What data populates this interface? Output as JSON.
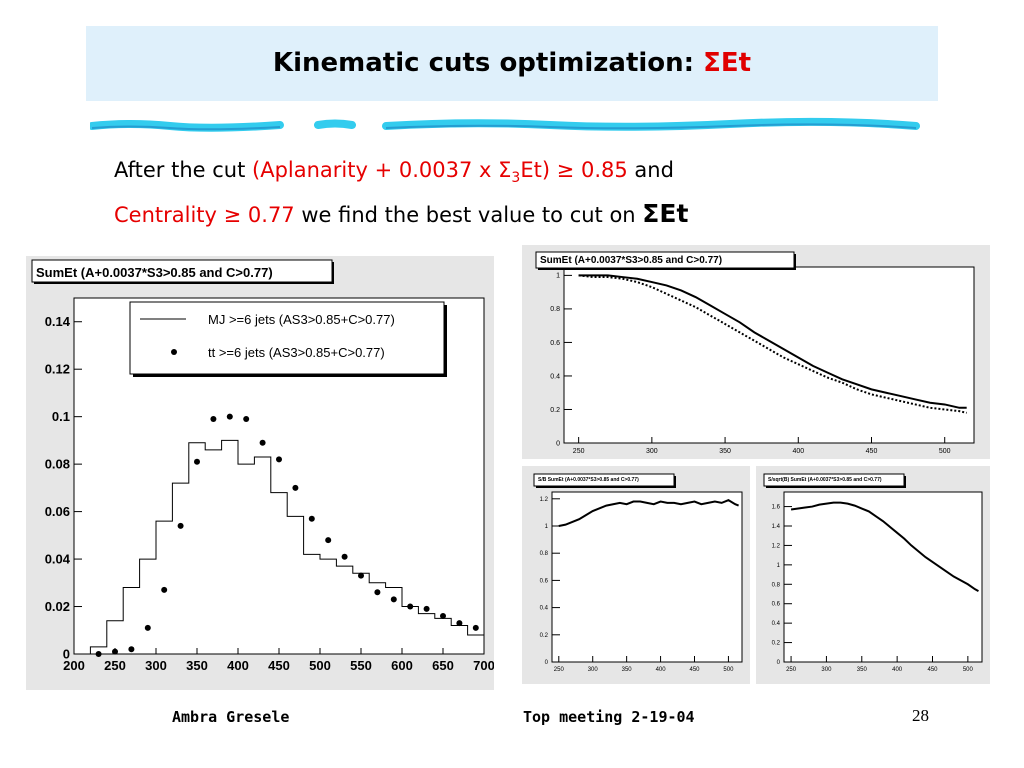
{
  "slide": {
    "title_main": "Kinematic cuts optimization: ",
    "title_sigma": "ΣEt",
    "desc_1": "After the cut ",
    "desc_2": "(Aplanarity + 0.0037 x Σ",
    "desc_3": "3",
    "desc_4": "Et) ≥ 0.85",
    "desc_5": "  and",
    "desc_6": "Centrality ≥ 0.77",
    "desc_7": " we find the best value to cut on ",
    "desc_8": "ΣEt",
    "footer_left": "Ambra Gresele",
    "footer_center": "Top meeting 2-19-04",
    "page_number": "28",
    "colors": {
      "title_bg": "#dff0fb",
      "accent_red": "#e00000",
      "rule": "#33ccee"
    }
  },
  "chart_data": [
    {
      "type": "histogram",
      "title": "SumEt (A+0.0037*S3>0.85 and C>0.77)",
      "xlim": [
        200,
        700
      ],
      "ylim": [
        0,
        0.15
      ],
      "xticks": [
        200,
        250,
        300,
        350,
        400,
        450,
        500,
        550,
        600,
        650,
        700
      ],
      "yticks": [
        0,
        0.02,
        0.04,
        0.06,
        0.08,
        0.1,
        0.12,
        0.14
      ],
      "legend": [
        "MJ >=6 jets  (AS3>0.85+C>0.77)",
        "tt >=6 jets (AS3>0.85+C>0.77)"
      ],
      "legend_position": "top-right",
      "bin_edges": [
        220,
        240,
        260,
        280,
        300,
        320,
        340,
        360,
        380,
        400,
        420,
        440,
        460,
        480,
        500,
        520,
        540,
        560,
        580,
        600,
        620,
        640,
        660,
        680,
        700
      ],
      "series": [
        {
          "name": "MJ >=6 jets  (AS3>0.85+C>0.77)",
          "style": "step",
          "values": [
            0.003,
            0.014,
            0.028,
            0.04,
            0.056,
            0.072,
            0.089,
            0.086,
            0.09,
            0.08,
            0.083,
            0.068,
            0.058,
            0.042,
            0.04,
            0.037,
            0.034,
            0.03,
            0.028,
            0.02,
            0.017,
            0.015,
            0.012,
            0.008
          ]
        },
        {
          "name": "tt >=6 jets (AS3>0.85+C>0.77)",
          "style": "points",
          "x": [
            230,
            250,
            270,
            290,
            310,
            330,
            350,
            370,
            390,
            410,
            430,
            450,
            470,
            490,
            510,
            530,
            550,
            570,
            590,
            610,
            630,
            650,
            670,
            690
          ],
          "values": [
            0.0,
            0.001,
            0.002,
            0.011,
            0.027,
            0.054,
            0.081,
            0.099,
            0.1,
            0.099,
            0.089,
            0.082,
            0.07,
            0.057,
            0.048,
            0.041,
            0.033,
            0.026,
            0.023,
            0.02,
            0.019,
            0.016,
            0.013,
            0.011
          ]
        }
      ]
    },
    {
      "type": "line",
      "title": "SumEt (A+0.0037*S3>0.85  and C>0.77)",
      "xlim": [
        240,
        520
      ],
      "ylim": [
        0,
        1.05
      ],
      "xticks": [
        250,
        300,
        350,
        400,
        450,
        500
      ],
      "yticks": [
        0,
        0.2,
        0.4,
        0.6,
        0.8,
        1
      ],
      "x": [
        250,
        260,
        270,
        280,
        290,
        300,
        310,
        320,
        330,
        340,
        350,
        360,
        370,
        380,
        390,
        400,
        410,
        420,
        430,
        440,
        450,
        460,
        470,
        480,
        490,
        500,
        510,
        515
      ],
      "series": [
        {
          "style": "solid",
          "values": [
            1.0,
            1.0,
            1.0,
            0.99,
            0.98,
            0.96,
            0.94,
            0.91,
            0.87,
            0.82,
            0.77,
            0.72,
            0.66,
            0.61,
            0.56,
            0.51,
            0.46,
            0.42,
            0.38,
            0.35,
            0.32,
            0.3,
            0.28,
            0.26,
            0.24,
            0.23,
            0.21,
            0.21
          ]
        },
        {
          "style": "dotted",
          "values": [
            1.0,
            0.99,
            0.99,
            0.98,
            0.96,
            0.93,
            0.89,
            0.85,
            0.81,
            0.76,
            0.71,
            0.66,
            0.61,
            0.56,
            0.51,
            0.47,
            0.43,
            0.39,
            0.36,
            0.32,
            0.29,
            0.27,
            0.25,
            0.23,
            0.21,
            0.2,
            0.19,
            0.18
          ]
        }
      ]
    },
    {
      "type": "line",
      "title": "S/B SumEt (A+0.0037*S3>0.85 and C>0.77)",
      "xlim": [
        240,
        520
      ],
      "ylim": [
        0,
        1.25
      ],
      "xticks": [
        250,
        300,
        350,
        400,
        450,
        500
      ],
      "yticks": [
        0,
        0.2,
        0.4,
        0.6,
        0.8,
        1,
        1.2
      ],
      "x": [
        250,
        260,
        270,
        280,
        290,
        300,
        310,
        320,
        330,
        340,
        350,
        360,
        370,
        380,
        390,
        400,
        410,
        420,
        430,
        440,
        450,
        460,
        470,
        480,
        490,
        500,
        510,
        515
      ],
      "series": [
        {
          "style": "solid",
          "values": [
            1.0,
            1.01,
            1.03,
            1.05,
            1.08,
            1.11,
            1.13,
            1.15,
            1.16,
            1.17,
            1.16,
            1.18,
            1.18,
            1.17,
            1.16,
            1.18,
            1.17,
            1.17,
            1.16,
            1.17,
            1.18,
            1.16,
            1.17,
            1.18,
            1.17,
            1.19,
            1.16,
            1.15
          ]
        }
      ]
    },
    {
      "type": "line",
      "title": "S/sqrt(B) SumEt (A+0.0037*S3>0.85 and C>0.77)",
      "xlim": [
        240,
        520
      ],
      "ylim": [
        0,
        1.75
      ],
      "xticks": [
        250,
        300,
        350,
        400,
        450,
        500
      ],
      "yticks": [
        0,
        0.2,
        0.4,
        0.6,
        0.8,
        1,
        1.2,
        1.4,
        1.6
      ],
      "x": [
        250,
        260,
        270,
        280,
        290,
        300,
        310,
        320,
        330,
        340,
        350,
        360,
        370,
        380,
        390,
        400,
        410,
        420,
        430,
        440,
        450,
        460,
        470,
        480,
        490,
        500,
        510,
        515
      ],
      "series": [
        {
          "style": "solid",
          "values": [
            1.57,
            1.58,
            1.59,
            1.6,
            1.62,
            1.63,
            1.64,
            1.64,
            1.63,
            1.61,
            1.58,
            1.55,
            1.5,
            1.45,
            1.39,
            1.33,
            1.27,
            1.2,
            1.14,
            1.08,
            1.03,
            0.98,
            0.93,
            0.88,
            0.84,
            0.8,
            0.75,
            0.73
          ]
        }
      ]
    }
  ]
}
